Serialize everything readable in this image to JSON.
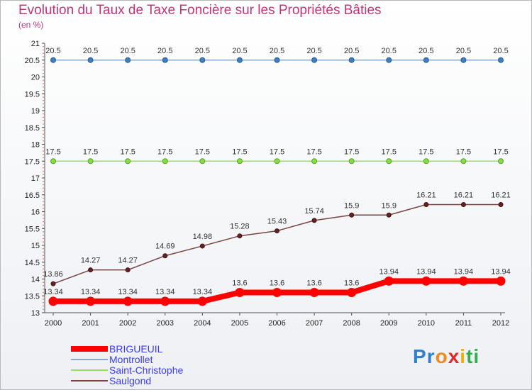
{
  "chart_data": {
    "type": "line",
    "title": "Evolution du Taux de Taxe Foncière sur les Propriétés Bâties",
    "subtitle": "(en %)",
    "xlabel": "",
    "ylabel": "",
    "categories": [
      "2000",
      "2001",
      "2002",
      "2003",
      "2004",
      "2005",
      "2006",
      "2007",
      "2008",
      "2009",
      "2010",
      "2011",
      "2012"
    ],
    "ylim": [
      13,
      21
    ],
    "yticks": [
      13,
      13.5,
      14,
      14.5,
      15,
      15.5,
      16,
      16.5,
      17,
      17.5,
      18,
      18.5,
      19,
      19.5,
      20,
      20.5,
      21
    ],
    "grid": false,
    "legend_position": "bottom-left",
    "series": [
      {
        "name": "BRIGUEUIL",
        "color": "#ff0000",
        "values": [
          13.34,
          13.34,
          13.34,
          13.34,
          13.34,
          13.6,
          13.6,
          13.6,
          13.6,
          13.94,
          13.94,
          13.94,
          13.94
        ]
      },
      {
        "name": "Montrollet",
        "color": "#88aacc",
        "values": [
          20.5,
          20.5,
          20.5,
          20.5,
          20.5,
          20.5,
          20.5,
          20.5,
          20.5,
          20.5,
          20.5,
          20.5,
          20.5
        ]
      },
      {
        "name": "Saint-Christophe",
        "color": "#99dd66",
        "values": [
          17.5,
          17.5,
          17.5,
          17.5,
          17.5,
          17.5,
          17.5,
          17.5,
          17.5,
          17.5,
          17.5,
          17.5,
          17.5
        ]
      },
      {
        "name": "Saulgond",
        "color": "#774444",
        "values": [
          13.86,
          14.27,
          14.27,
          14.69,
          14.98,
          15.28,
          15.43,
          15.74,
          15.9,
          15.9,
          16.21,
          16.21,
          16.21
        ]
      }
    ]
  },
  "branding": {
    "letters": [
      "P",
      "r",
      "o",
      "x",
      "i",
      "t",
      "i"
    ],
    "colors": [
      "#2f7fd0",
      "#2f7fd0",
      "#f08a1e",
      "#e02b2b",
      "#f0b000",
      "#2fb04a",
      "#2fb04a"
    ]
  }
}
